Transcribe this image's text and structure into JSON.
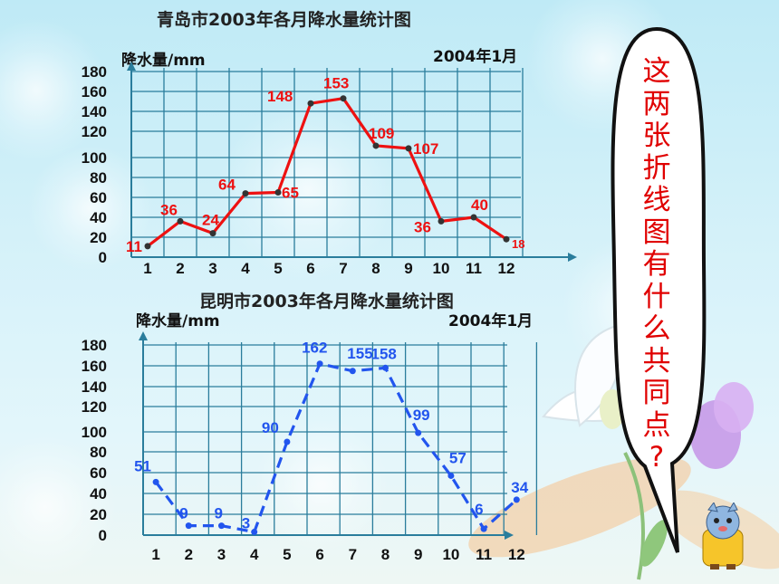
{
  "charts": [
    {
      "title": "青岛市2003年各月降水量统计图",
      "ylabel": "降水量/mm",
      "date": "2004年1月"
    },
    {
      "title": "昆明市2003年各月降水量统计图",
      "ylabel": "降水量/mm",
      "date": "2004年1月"
    }
  ],
  "bubble": {
    "chars": [
      "这",
      "两",
      "张",
      "折",
      "线",
      "图",
      "有",
      "什",
      "么",
      "共",
      "同",
      "点",
      "?"
    ]
  },
  "colors": {
    "qingdao": "#ee1111",
    "kunming": "#2255ee",
    "grid": "#2a7d9c",
    "bubble_text": "#e00000"
  },
  "chart_data": [
    {
      "type": "line",
      "title": "青岛市2003年各月降水量统计图",
      "ylabel": "降水量/mm",
      "categories": [
        "1",
        "2",
        "3",
        "4",
        "5",
        "6",
        "7",
        "8",
        "9",
        "10",
        "11",
        "12"
      ],
      "yticks": [
        0,
        20,
        40,
        60,
        80,
        100,
        120,
        140,
        160,
        180
      ],
      "ylim": [
        0,
        180
      ],
      "line_style": "solid",
      "series": [
        {
          "values": [
            11,
            36,
            24,
            64,
            65,
            148,
            153,
            109,
            107,
            36,
            40,
            18
          ]
        }
      ],
      "labels": [
        "11",
        "36",
        "24",
        "64",
        "65",
        "148",
        "153",
        "109",
        "107",
        "36",
        "40",
        "18"
      ]
    },
    {
      "type": "line",
      "title": "昆明市2003年各月降水量统计图",
      "ylabel": "降水量/mm",
      "categories": [
        "1",
        "2",
        "3",
        "4",
        "5",
        "6",
        "7",
        "8",
        "9",
        "10",
        "11",
        "12"
      ],
      "yticks": [
        0,
        20,
        40,
        60,
        80,
        100,
        120,
        140,
        160,
        180
      ],
      "ylim": [
        0,
        180
      ],
      "line_style": "dashed",
      "series": [
        {
          "values": [
            51,
            9,
            9,
            3,
            90,
            162,
            155,
            158,
            99,
            57,
            6,
            34
          ]
        }
      ],
      "labels": [
        "51",
        "9",
        "9",
        "3",
        "90",
        "162",
        "155",
        "158",
        "99",
        "57",
        "6",
        "34"
      ]
    }
  ]
}
